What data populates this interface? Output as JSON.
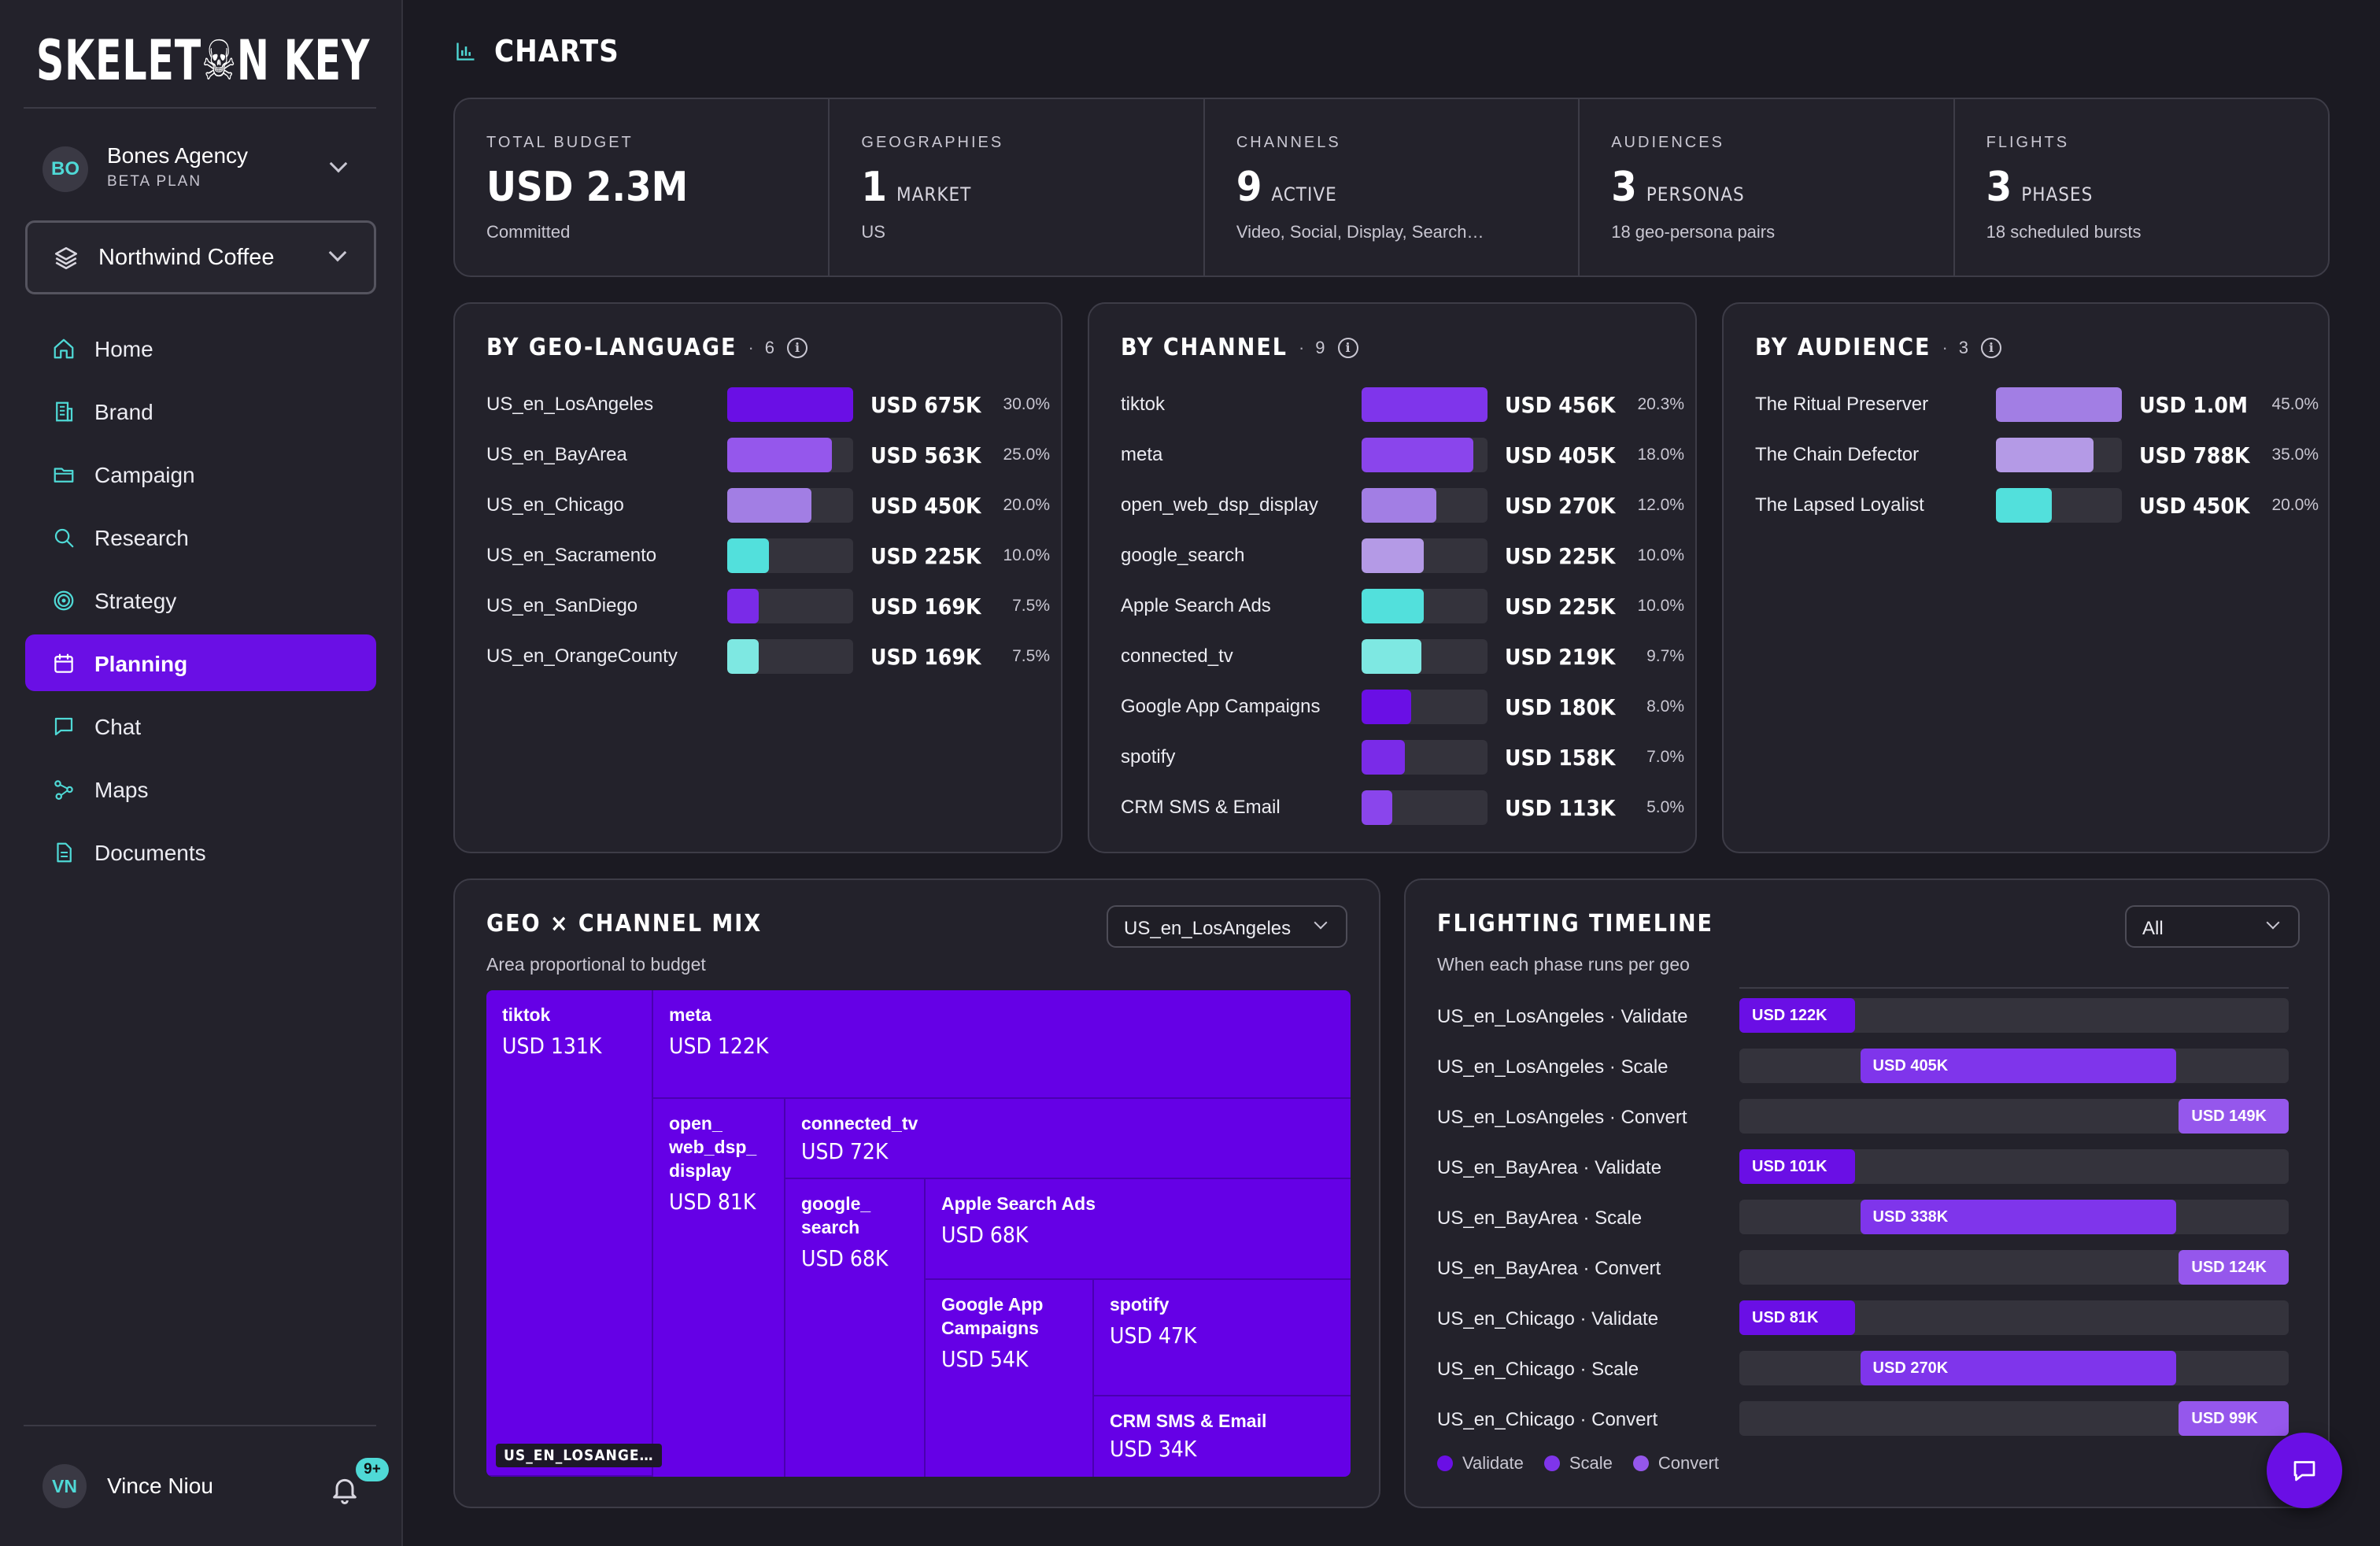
{
  "app": {
    "logo": "SKELET☠N KEY"
  },
  "org": {
    "avatar": "BO",
    "name": "Bones Agency",
    "plan": "BETA PLAN"
  },
  "brand_select": {
    "value": "Northwind Coffee"
  },
  "nav": [
    {
      "label": "Home",
      "icon": "home-icon"
    },
    {
      "label": "Brand",
      "icon": "building-icon"
    },
    {
      "label": "Campaign",
      "icon": "folder-icon"
    },
    {
      "label": "Research",
      "icon": "search-icon"
    },
    {
      "label": "Strategy",
      "icon": "target-icon"
    },
    {
      "label": "Planning",
      "icon": "calendar-icon",
      "active": true
    },
    {
      "label": "Chat",
      "icon": "chat-icon"
    },
    {
      "label": "Maps",
      "icon": "route-icon"
    },
    {
      "label": "Documents",
      "icon": "document-icon"
    }
  ],
  "user": {
    "avatar": "VN",
    "name": "Vince Niou",
    "notifications": "9+"
  },
  "page": {
    "title": "CHARTS"
  },
  "kpis": [
    {
      "label": "TOTAL BUDGET",
      "value": "USD 2.3M",
      "unit": "",
      "sub": "Committed"
    },
    {
      "label": "GEOGRAPHIES",
      "value": "1",
      "unit": "MARKET",
      "sub": "US"
    },
    {
      "label": "CHANNELS",
      "value": "9",
      "unit": "ACTIVE",
      "sub": "Video, Social, Display, Search…"
    },
    {
      "label": "AUDIENCES",
      "value": "3",
      "unit": "PERSONAS",
      "sub": "18 geo-persona pairs"
    },
    {
      "label": "FLIGHTS",
      "value": "3",
      "unit": "PHASES",
      "sub": "18 scheduled bursts"
    }
  ],
  "geo_language": {
    "title": "BY GEO-LANGUAGE",
    "count": "6",
    "rows": [
      {
        "name": "US_en_LosAngeles",
        "amount": "USD 675K",
        "pct": "30.0%",
        "value": 30.0,
        "color": "#6a0fe5"
      },
      {
        "name": "US_en_BayArea",
        "amount": "USD 563K",
        "pct": "25.0%",
        "value": 25.0,
        "color": "#9557ec"
      },
      {
        "name": "US_en_Chicago",
        "amount": "USD 450K",
        "pct": "20.0%",
        "value": 20.0,
        "color": "#a27ee4"
      },
      {
        "name": "US_en_Sacramento",
        "amount": "USD 225K",
        "pct": "10.0%",
        "value": 10.0,
        "color": "#52e0dc"
      },
      {
        "name": "US_en_SanDiego",
        "amount": "USD 169K",
        "pct": "7.5%",
        "value": 7.5,
        "color": "#7a2be8"
      },
      {
        "name": "US_en_OrangeCounty",
        "amount": "USD 169K",
        "pct": "7.5%",
        "value": 7.5,
        "color": "#7ee8e2"
      }
    ]
  },
  "channel": {
    "title": "BY CHANNEL",
    "count": "9",
    "rows": [
      {
        "name": "tiktok",
        "amount": "USD 456K",
        "pct": "20.3%",
        "value": 20.3,
        "color": "#7f35eb"
      },
      {
        "name": "meta",
        "amount": "USD 405K",
        "pct": "18.0%",
        "value": 18.0,
        "color": "#8a45ec"
      },
      {
        "name": "open_web_dsp_display",
        "amount": "USD 270K",
        "pct": "12.0%",
        "value": 12.0,
        "color": "#a27ee4"
      },
      {
        "name": "google_search",
        "amount": "USD 225K",
        "pct": "10.0%",
        "value": 10.0,
        "color": "#b49ae6"
      },
      {
        "name": "Apple Search Ads",
        "amount": "USD 225K",
        "pct": "10.0%",
        "value": 10.0,
        "color": "#52e0dc"
      },
      {
        "name": "connected_tv",
        "amount": "USD 219K",
        "pct": "9.7%",
        "value": 9.7,
        "color": "#7ee8e2"
      },
      {
        "name": "Google App Campaigns",
        "amount": "USD 180K",
        "pct": "8.0%",
        "value": 8.0,
        "color": "#6a0fe5"
      },
      {
        "name": "spotify",
        "amount": "USD 158K",
        "pct": "7.0%",
        "value": 7.0,
        "color": "#7a2be8"
      },
      {
        "name": "CRM SMS & Email",
        "amount": "USD 113K",
        "pct": "5.0%",
        "value": 5.0,
        "color": "#8a45ec"
      }
    ]
  },
  "audience": {
    "title": "BY AUDIENCE",
    "count": "3",
    "rows": [
      {
        "name": "The Ritual Preserver",
        "amount": "USD 1.0M",
        "pct": "45.0%",
        "value": 45.0,
        "color": "#a27ee4"
      },
      {
        "name": "The Chain Defector",
        "amount": "USD 788K",
        "pct": "35.0%",
        "value": 35.0,
        "color": "#b49ae6"
      },
      {
        "name": "The Lapsed Loyalist",
        "amount": "USD 450K",
        "pct": "20.0%",
        "value": 20.0,
        "color": "#52e0dc"
      }
    ]
  },
  "geo_channel_mix": {
    "title": "GEO × CHANNEL MIX",
    "subtitle": "Area proportional to budget",
    "selected_geo": "US_en_LosAngeles",
    "geo_tag": "US_EN_LOSANGE…",
    "tiles": [
      {
        "name": "tiktok",
        "amount": "USD 131K"
      },
      {
        "name": "meta",
        "amount": "USD 122K"
      },
      {
        "name": "open_ web_dsp_ display",
        "amount": "USD 81K"
      },
      {
        "name": "connected_tv",
        "amount": "USD 72K"
      },
      {
        "name": "google_ search",
        "amount": "USD 68K"
      },
      {
        "name": "Apple Search Ads",
        "amount": "USD 68K"
      },
      {
        "name": "Google App Campaigns",
        "amount": "USD 54K"
      },
      {
        "name": "spotify",
        "amount": "USD 47K"
      },
      {
        "name": "CRM SMS & Email",
        "amount": "USD 34K"
      }
    ]
  },
  "flighting": {
    "title": "FLIGHTING TIMELINE",
    "subtitle": "When each phase runs per geo",
    "filter": "All",
    "legend": [
      {
        "label": "Validate",
        "color": "#6a0fe5"
      },
      {
        "label": "Scale",
        "color": "#7f35eb"
      },
      {
        "label": "Convert",
        "color": "#9557ec"
      }
    ],
    "rows": [
      {
        "name": "US_en_LosAngeles · Validate",
        "amount": "USD 122K",
        "start": 0.0,
        "end": 0.21,
        "color": "#6a0fe5"
      },
      {
        "name": "US_en_LosAngeles · Scale",
        "amount": "USD 405K",
        "start": 0.22,
        "end": 0.795,
        "color": "#7f35eb"
      },
      {
        "name": "US_en_LosAngeles · Convert",
        "amount": "USD 149K",
        "start": 0.8,
        "end": 1.0,
        "color": "#9557ec"
      },
      {
        "name": "US_en_BayArea · Validate",
        "amount": "USD 101K",
        "start": 0.0,
        "end": 0.21,
        "color": "#6a0fe5"
      },
      {
        "name": "US_en_BayArea · Scale",
        "amount": "USD 338K",
        "start": 0.22,
        "end": 0.795,
        "color": "#7f35eb"
      },
      {
        "name": "US_en_BayArea · Convert",
        "amount": "USD 124K",
        "start": 0.8,
        "end": 1.0,
        "color": "#9557ec"
      },
      {
        "name": "US_en_Chicago · Validate",
        "amount": "USD 81K",
        "start": 0.0,
        "end": 0.21,
        "color": "#6a0fe5"
      },
      {
        "name": "US_en_Chicago · Scale",
        "amount": "USD 270K",
        "start": 0.22,
        "end": 0.795,
        "color": "#7f35eb"
      },
      {
        "name": "US_en_Chicago · Convert",
        "amount": "USD 99K",
        "start": 0.8,
        "end": 1.0,
        "color": "#9557ec"
      }
    ]
  }
}
